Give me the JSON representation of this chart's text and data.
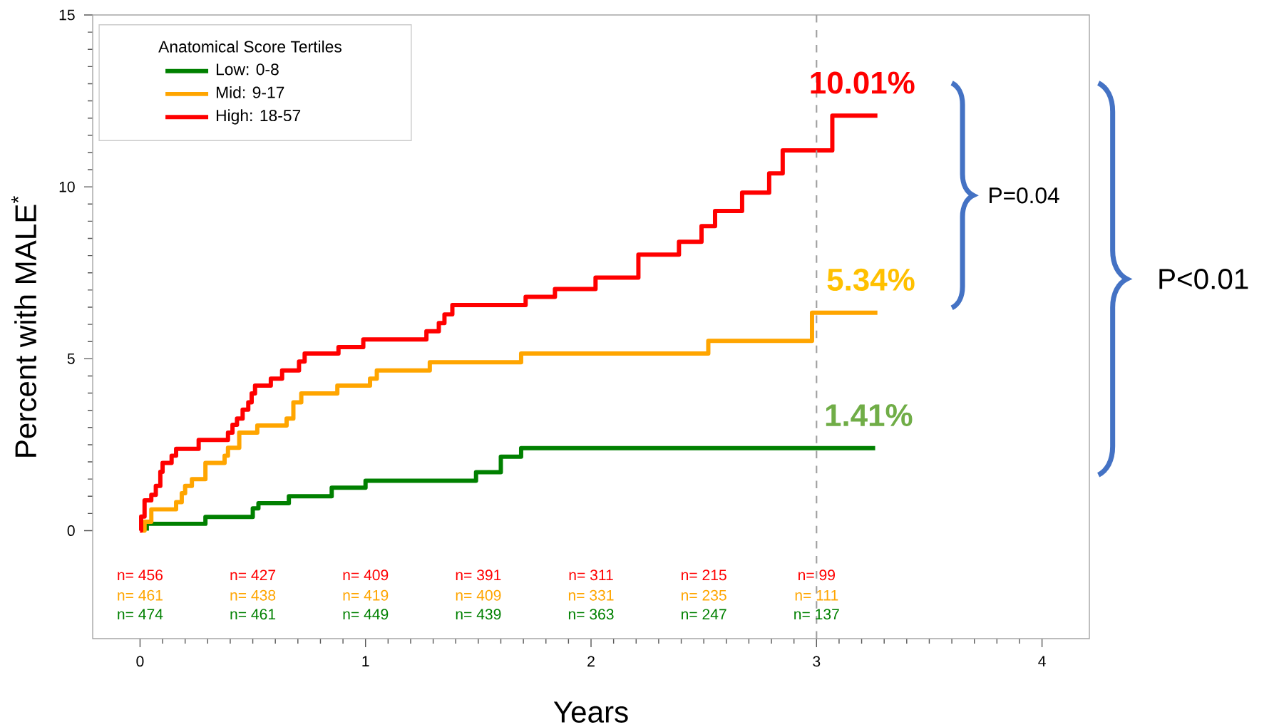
{
  "chart_data": {
    "type": "step",
    "xlabel": "Years",
    "ylabel": "Percent with MALE$^{*}$",
    "legend_title": "Anatomical Score Tertiles",
    "legend": "top left",
    "xlim": [
      -0.21,
      4.21
    ],
    "ylim": [
      -3.14,
      15
    ],
    "xticks": [
      0,
      1,
      2,
      3,
      4
    ],
    "yticks": [
      0,
      5,
      10,
      15
    ],
    "series": [
      {
        "name": "Low:   0-8",
        "color": "#008000",
        "x": [
          0.03,
          0.03,
          0.29,
          0.5,
          0.525,
          0.66,
          0.85,
          1.0,
          1.49,
          1.6,
          1.69,
          3.26
        ],
        "values": [
          0,
          0.2,
          0.4,
          0.65,
          0.8,
          1.0,
          1.25,
          1.45,
          1.7,
          2.15,
          2.4,
          2.4
        ]
      },
      {
        "name": "Mid:   9-17",
        "color": "#ffa500",
        "x": [
          0.01,
          0.02,
          0.05,
          0.16,
          0.185,
          0.2,
          0.23,
          0.29,
          0.375,
          0.39,
          0.44,
          0.52,
          0.65,
          0.68,
          0.715,
          0.875,
          1.02,
          1.05,
          1.285,
          1.69,
          2.52,
          2.98,
          3.27
        ],
        "values": [
          0,
          0.26,
          0.62,
          0.83,
          1.09,
          1.3,
          1.5,
          1.97,
          2.18,
          2.41,
          2.85,
          3.06,
          3.26,
          3.73,
          3.99,
          4.22,
          4.42,
          4.66,
          4.9,
          5.15,
          5.52,
          6.34,
          6.34
        ]
      },
      {
        "name": "High: 18-57",
        "color": "#ff0000",
        "x": [
          0,
          0.005,
          0.02,
          0.05,
          0.07,
          0.09,
          0.1,
          0.14,
          0.16,
          0.26,
          0.39,
          0.41,
          0.43,
          0.455,
          0.48,
          0.495,
          0.51,
          0.58,
          0.63,
          0.705,
          0.73,
          0.88,
          0.99,
          1.27,
          1.325,
          1.35,
          1.385,
          1.71,
          1.84,
          2.02,
          2.21,
          2.39,
          2.49,
          2.55,
          2.67,
          2.79,
          2.85,
          3.07,
          3.27
        ],
        "values": [
          0,
          0.41,
          0.88,
          1.04,
          1.3,
          1.71,
          1.97,
          2.18,
          2.38,
          2.64,
          2.85,
          3.08,
          3.26,
          3.52,
          3.73,
          3.99,
          4.22,
          4.42,
          4.66,
          4.92,
          5.15,
          5.34,
          5.56,
          5.8,
          6.04,
          6.29,
          6.56,
          6.8,
          7.03,
          7.36,
          8.03,
          8.4,
          8.86,
          9.3,
          9.83,
          10.39,
          11.06,
          12.07,
          12.07
        ]
      }
    ],
    "ref_lines": [
      {
        "axis": "x",
        "value": 3,
        "color": "#a0a0a0",
        "line_style": "dashed"
      }
    ],
    "annotations": [
      "10.01%",
      "5.34%",
      "1.41%",
      "P=0.04",
      "P<0.01",
      "n= 456",
      "n= 427",
      "n= 409",
      "n= 391",
      "n= 311",
      "n= 215",
      "n= 99",
      "n= 461",
      "n= 438",
      "n= 419",
      "n= 409",
      "n= 331",
      "n= 235",
      "n= 111",
      "n= 474",
      "n= 461",
      "n= 449",
      "n= 439",
      "n= 363",
      "n= 247",
      "n= 137"
    ]
  }
}
